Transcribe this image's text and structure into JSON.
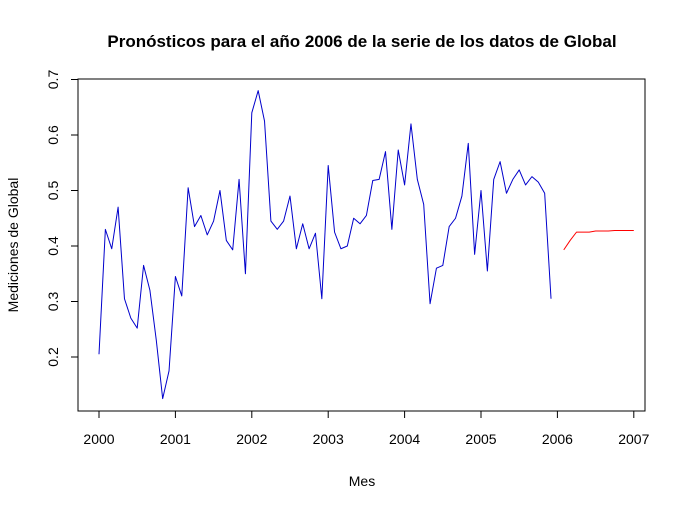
{
  "chart_data": {
    "type": "line",
    "title": "Pronósticos para el año 2006 de la serie de los datos de Global",
    "xlabel": "Mes",
    "ylabel": "Mediciones de Global",
    "xlim": [
      2000,
      2007
    ],
    "ylim": [
      0.12,
      0.7
    ],
    "x_ticks": [
      "2000",
      "2001",
      "2002",
      "2003",
      "2004",
      "2005",
      "2006",
      "2007"
    ],
    "y_ticks": [
      "0.2",
      "0.3",
      "0.4",
      "0.5",
      "0.6",
      "0.7"
    ],
    "grid": false,
    "legend": "none",
    "series": [
      {
        "color": "#0000cc",
        "start": 2000,
        "frequency": 12,
        "values": [
          0.205,
          0.43,
          0.395,
          0.47,
          0.305,
          0.27,
          0.252,
          0.365,
          0.32,
          0.23,
          0.125,
          0.175,
          0.345,
          0.31,
          0.505,
          0.435,
          0.455,
          0.42,
          0.445,
          0.5,
          0.41,
          0.393,
          0.52,
          0.35,
          0.64,
          0.68,
          0.625,
          0.445,
          0.43,
          0.445,
          0.49,
          0.395,
          0.44,
          0.395,
          0.423,
          0.305,
          0.545,
          0.425,
          0.395,
          0.4,
          0.45,
          0.44,
          0.455,
          0.518,
          0.52,
          0.57,
          0.43,
          0.573,
          0.51,
          0.62,
          0.52,
          0.475,
          0.296,
          0.36,
          0.365,
          0.435,
          0.45,
          0.49,
          0.585,
          0.385,
          0.5,
          0.355,
          0.52,
          0.552,
          0.495,
          0.52,
          0.537,
          0.51,
          0.525,
          0.515,
          0.495,
          0.305
        ]
      },
      {
        "color": "#ff0000",
        "start": 2006.0833,
        "frequency": 12,
        "values": [
          0.393,
          0.41,
          0.425,
          0.425,
          0.425,
          0.427,
          0.427,
          0.427,
          0.428,
          0.428,
          0.428,
          0.428
        ]
      }
    ]
  }
}
